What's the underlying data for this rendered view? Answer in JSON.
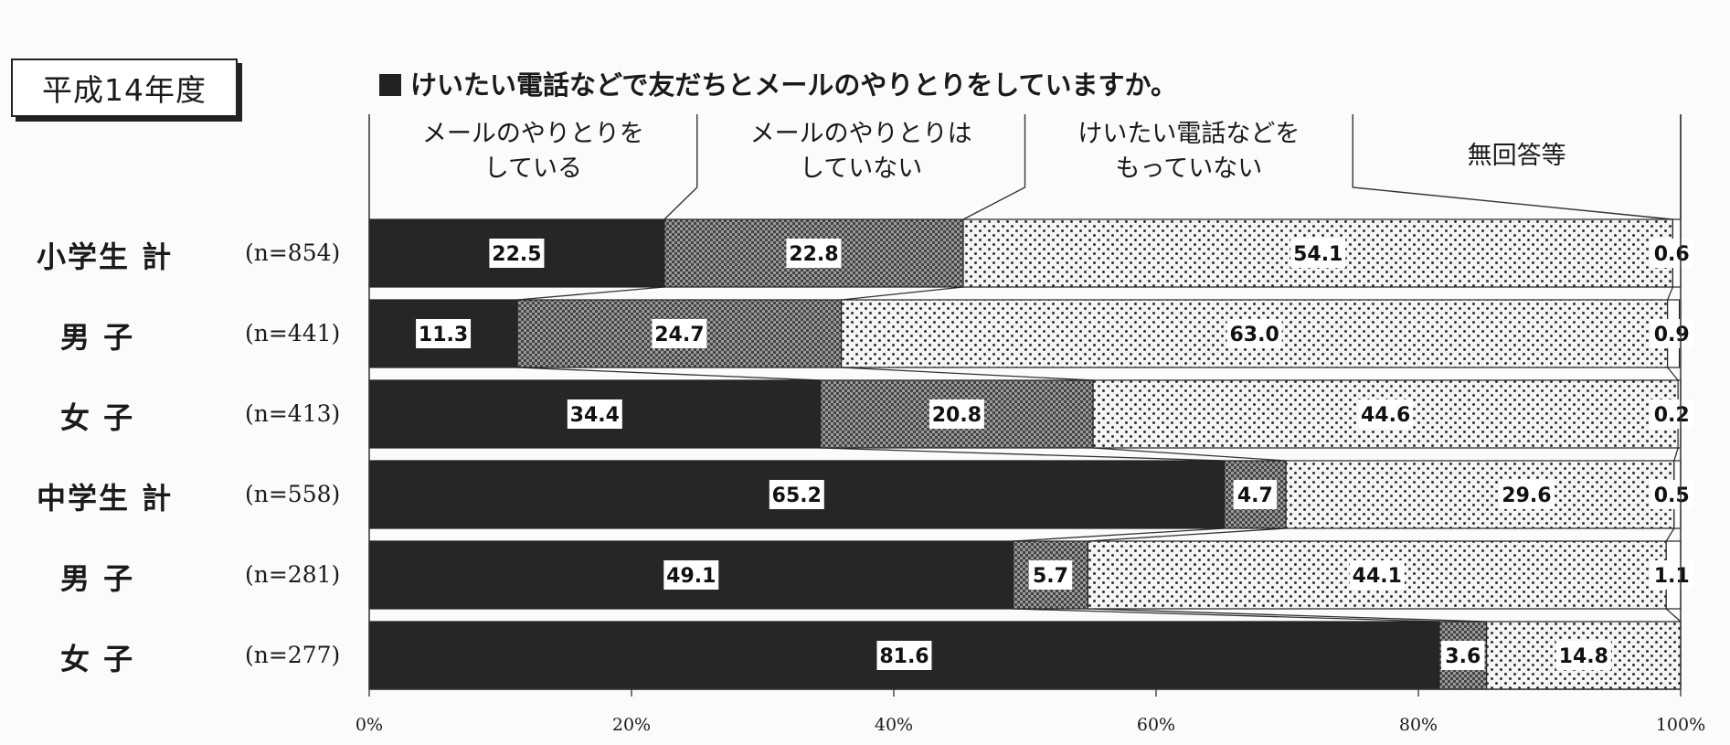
{
  "year_label": "平成14年度",
  "chart_data": {
    "type": "bar",
    "orientation": "horizontal",
    "stacked": true,
    "percent": true,
    "title": "けいたい電話などで友だちとメールのやりとりをしていますか。",
    "categories": [
      "メールのやりとりをしている",
      "メールのやりとりはしていない",
      "けいたい電話などをもっていない",
      "無回答等"
    ],
    "category_headers": [
      "メールのやりとりを\nしている",
      "メールのやりとりは\nしていない",
      "けいたい電話などを\nもっていない",
      "無回答等"
    ],
    "rows": [
      {
        "label": "小学生 計",
        "n": "(n=854)",
        "values": [
          22.5,
          22.8,
          54.1,
          0.6
        ]
      },
      {
        "label": "男 子",
        "n": "(n=441)",
        "values": [
          11.3,
          24.7,
          63.0,
          0.9
        ]
      },
      {
        "label": "女 子",
        "n": "(n=413)",
        "values": [
          34.4,
          20.8,
          44.6,
          0.2
        ]
      },
      {
        "label": "中学生 計",
        "n": "(n=558)",
        "values": [
          65.2,
          4.7,
          29.6,
          0.5
        ]
      },
      {
        "label": "男 子",
        "n": "(n=281)",
        "values": [
          49.1,
          5.7,
          44.1,
          1.1
        ]
      },
      {
        "label": "女 子",
        "n": "(n=277)",
        "values": [
          81.6,
          3.6,
          14.8,
          null
        ]
      }
    ],
    "value_labels": [
      [
        "22.5",
        "22.8",
        "54.1",
        "0.6"
      ],
      [
        "11.3",
        "24.7",
        "63.0",
        "0.9"
      ],
      [
        "34.4",
        "20.8",
        "44.6",
        "0.2"
      ],
      [
        "65.2",
        "4.7",
        "29.6",
        "0.5"
      ],
      [
        "49.1",
        "5.7",
        "44.1",
        "1.1"
      ],
      [
        "81.6",
        "3.6",
        "14.8",
        ""
      ]
    ],
    "x_ticks": [
      "0%",
      "20%",
      "40%",
      "60%",
      "80%",
      "100%"
    ],
    "xlim": [
      0,
      100
    ],
    "colors": [
      "#262626",
      "#7a7a7a",
      "#f2f2f2",
      "#ffffff"
    ],
    "grid": false
  }
}
